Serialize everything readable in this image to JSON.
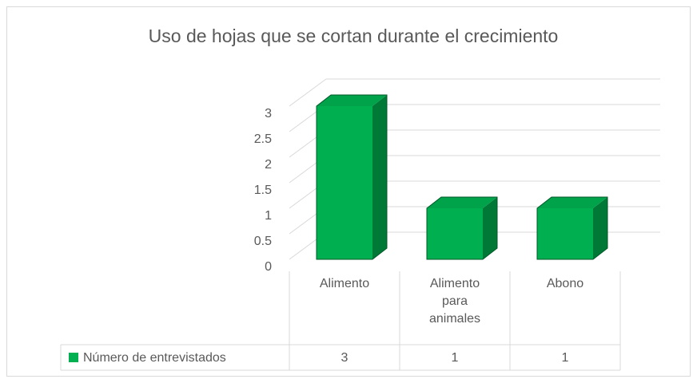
{
  "chart_data": {
    "type": "bar3d",
    "title": "Uso de hojas que se cortan durante el crecimiento",
    "categories": [
      "Alimento",
      "Alimento para animales",
      "Abono"
    ],
    "series": [
      {
        "name": "Número de entrevistados",
        "color": "#00b050",
        "values": [
          3,
          1,
          1
        ]
      }
    ],
    "ylim": [
      0,
      3
    ],
    "yticks": [
      0,
      0.5,
      1,
      1.5,
      2,
      2.5,
      3
    ],
    "grid": true,
    "data_table": true
  }
}
